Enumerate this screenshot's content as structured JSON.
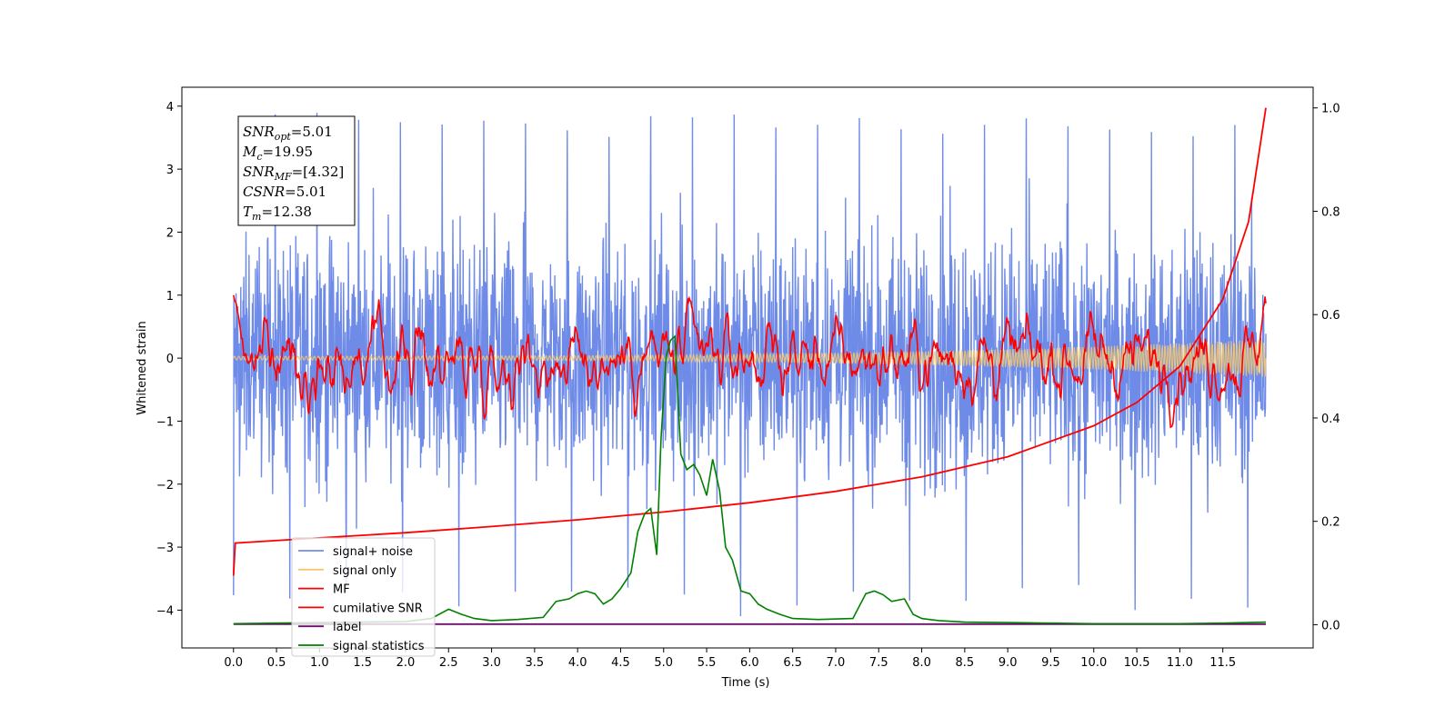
{
  "chart_data": {
    "type": "line",
    "xlabel": "Time (s)",
    "ylabel": "Whitened strain",
    "xlim": [
      -0.6,
      12.55
    ],
    "ylim": [
      -4.6,
      4.3
    ],
    "ylim_right": [
      -0.045,
      1.04
    ],
    "xticks": [
      0.0,
      0.5,
      1.0,
      1.5,
      2.0,
      2.5,
      3.0,
      3.5,
      4.0,
      4.5,
      5.0,
      5.5,
      6.0,
      6.5,
      7.0,
      7.5,
      8.0,
      8.5,
      9.0,
      9.5,
      10.0,
      10.5,
      11.0,
      11.5
    ],
    "xtick_labels": [
      "0.0",
      "0.5",
      "1.0",
      "1.5",
      "2.0",
      "2.5",
      "3.0",
      "3.5",
      "4.0",
      "4.5",
      "5.0",
      "5.5",
      "6.0",
      "6.5",
      "7.0",
      "7.5",
      "8.0",
      "8.5",
      "9.0",
      "9.5",
      "10.0",
      "10.5",
      "11.0",
      "11.5"
    ],
    "yticks_left": [
      4,
      3,
      2,
      1,
      0,
      -1,
      -2,
      -3,
      -4
    ],
    "ytick_labels_left": [
      "4",
      "3",
      "2",
      "1",
      "0",
      "−1",
      "−2",
      "−3",
      "−4"
    ],
    "yticks_right": [
      1.0,
      0.8,
      0.6,
      0.4,
      0.2,
      0.0
    ],
    "ytick_labels_right": [
      "1.0",
      "0.8",
      "0.6",
      "0.4",
      "0.2",
      "0.0"
    ],
    "grid": false,
    "legend_position": "lower-left",
    "series": [
      {
        "name": "signal+ noise",
        "color": "#6f8be8",
        "axis": "left",
        "envelope": [
          -2.4,
          2.4
        ],
        "peak": 3.9,
        "dip": -4.1
      },
      {
        "name": "signal only",
        "color": "#f5c870",
        "axis": "left",
        "start_amplitude": 0.03,
        "end_amplitude": 0.3
      },
      {
        "name": "MF",
        "color": "#ff0000",
        "axis": "left",
        "start": 1.0,
        "baseline": 0.0,
        "end": 1.0
      },
      {
        "name": "cumilative SNR",
        "color": "#ff0000",
        "axis": "right",
        "x": [
          0.0,
          0.02,
          1.0,
          2.0,
          3.0,
          4.0,
          5.0,
          6.0,
          7.0,
          8.0,
          9.0,
          10.0,
          10.5,
          11.0,
          11.5,
          11.8,
          12.0
        ],
        "values": [
          0.095,
          0.158,
          0.168,
          0.178,
          0.19,
          0.203,
          0.218,
          0.236,
          0.258,
          0.286,
          0.325,
          0.385,
          0.43,
          0.5,
          0.63,
          0.78,
          1.0
        ]
      },
      {
        "name": "label",
        "color": "#6a0f6a",
        "axis": "right",
        "x": [
          0.0,
          12.0
        ],
        "values": [
          0.001,
          0.001
        ]
      },
      {
        "name": "signal statistics",
        "color": "#008000",
        "axis": "right",
        "x": [
          0.0,
          0.5,
          1.0,
          1.5,
          2.0,
          2.3,
          2.5,
          2.65,
          2.8,
          3.0,
          3.3,
          3.6,
          3.75,
          3.9,
          4.0,
          4.1,
          4.2,
          4.3,
          4.4,
          4.5,
          4.62,
          4.7,
          4.78,
          4.85,
          4.92,
          4.97,
          5.03,
          5.08,
          5.13,
          5.2,
          5.27,
          5.35,
          5.42,
          5.5,
          5.57,
          5.65,
          5.72,
          5.8,
          5.9,
          6.0,
          6.1,
          6.2,
          6.35,
          6.5,
          6.8,
          7.2,
          7.35,
          7.45,
          7.55,
          7.65,
          7.8,
          7.9,
          8.0,
          8.2,
          8.5,
          9.0,
          9.5,
          10.0,
          10.5,
          11.0,
          11.5,
          12.0
        ],
        "values": [
          0.002,
          0.003,
          0.004,
          0.005,
          0.006,
          0.012,
          0.03,
          0.02,
          0.012,
          0.008,
          0.01,
          0.014,
          0.045,
          0.05,
          0.06,
          0.065,
          0.06,
          0.04,
          0.05,
          0.07,
          0.1,
          0.18,
          0.215,
          0.225,
          0.135,
          0.36,
          0.52,
          0.55,
          0.558,
          0.33,
          0.3,
          0.31,
          0.29,
          0.25,
          0.32,
          0.26,
          0.15,
          0.125,
          0.065,
          0.06,
          0.04,
          0.03,
          0.02,
          0.012,
          0.01,
          0.012,
          0.06,
          0.065,
          0.058,
          0.045,
          0.05,
          0.02,
          0.012,
          0.008,
          0.005,
          0.004,
          0.003,
          0.002,
          0.002,
          0.002,
          0.003,
          0.005
        ]
      }
    ],
    "annotation": {
      "lines": [
        {
          "main": "SNR",
          "sub": "opt",
          "value": "=5.01"
        },
        {
          "main": "M",
          "sub": "c",
          "value": "=19.95"
        },
        {
          "main": "SNR",
          "sub": "MF",
          "value": "=[4.32]"
        },
        {
          "main": "CSNR",
          "sub": "",
          "value": "=5.01"
        },
        {
          "main": "T",
          "sub": "m",
          "value": "=12.38"
        }
      ]
    }
  }
}
